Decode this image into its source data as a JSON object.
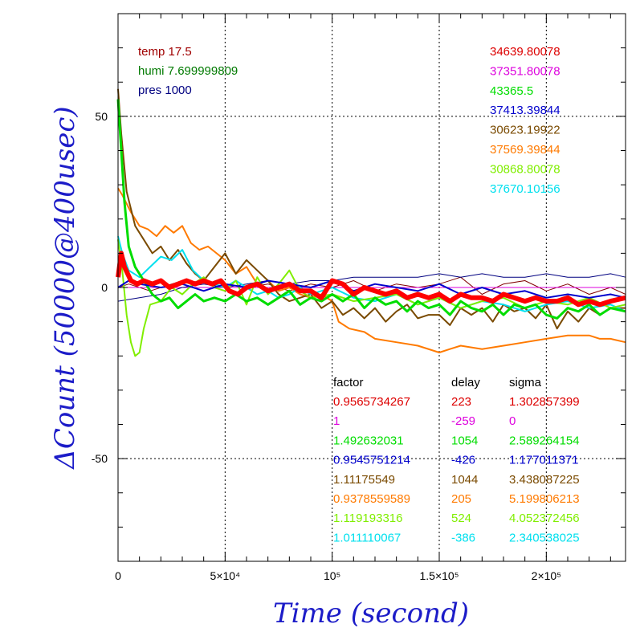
{
  "chart_data": {
    "type": "line",
    "title": "",
    "xlabel": "Time (second)",
    "ylabel": "ΔCount (50000@400usec)",
    "xlim": [
      0,
      237000
    ],
    "ylim": [
      -80,
      80
    ],
    "grid": true,
    "x_ticks": [
      {
        "value": 0,
        "label": "0"
      },
      {
        "value": 50000,
        "label": "5×10⁴"
      },
      {
        "value": 100000,
        "label": "10⁵"
      },
      {
        "value": 150000,
        "label": "1.5×10⁵"
      },
      {
        "value": 200000,
        "label": "2×10⁵"
      }
    ],
    "y_ticks": [
      {
        "value": 50,
        "label": "50"
      },
      {
        "value": 0,
        "label": "0"
      },
      {
        "value": -50,
        "label": "-50"
      }
    ],
    "env_text": [
      {
        "text": "temp 17.5",
        "color": "#a00000"
      },
      {
        "text": "humi 7.699999809",
        "color": "#007a00"
      },
      {
        "text": "pres 1000",
        "color": "#000080"
      }
    ],
    "sum_values": [
      {
        "text": "34639.80078",
        "color": "#dd0000"
      },
      {
        "text": "37351.80078",
        "color": "#dd00dd"
      },
      {
        "text": "43365.5",
        "color": "#00dd00"
      },
      {
        "text": "37413.39844",
        "color": "#0000cc"
      },
      {
        "text": "30623.19922",
        "color": "#7a4a00"
      },
      {
        "text": "37569.39844",
        "color": "#ff7a00"
      },
      {
        "text": "30868.80078",
        "color": "#80ee00"
      },
      {
        "text": "37670.10156",
        "color": "#00e0ee"
      }
    ],
    "table": {
      "headers": [
        "factor",
        "delay",
        "sigma"
      ],
      "rows": [
        {
          "factor": "0.9565734267",
          "delay": "223",
          "sigma": "1.302857399",
          "color": "#dd0000"
        },
        {
          "factor": "1",
          "delay": "-259",
          "sigma": "0",
          "color": "#dd00dd"
        },
        {
          "factor": "1.492632031",
          "delay": "1054",
          "sigma": "2.589264154",
          "color": "#00dd00"
        },
        {
          "factor": "0.9545751214",
          "delay": "-426",
          "sigma": "1.177011371",
          "color": "#0000cc"
        },
        {
          "factor": "1.11175549",
          "delay": "1044",
          "sigma": "3.438087225",
          "color": "#7a4a00"
        },
        {
          "factor": "0.9378559589",
          "delay": "205",
          "sigma": "5.199806213",
          "color": "#ff7a00"
        },
        {
          "factor": "1.119193316",
          "delay": "524",
          "sigma": "4.052372456",
          "color": "#80ee00"
        },
        {
          "factor": "1.011110067",
          "delay": "-386",
          "sigma": "2.340538025",
          "color": "#00e0ee"
        }
      ]
    },
    "series": [
      {
        "color": "#800000",
        "width": 1,
        "x": [
          0,
          5000,
          15000,
          30000,
          50000,
          60000,
          70000,
          80000,
          90000,
          100000,
          110000,
          120000,
          130000,
          140000,
          150000,
          160000,
          170000,
          180000,
          190000,
          200000,
          210000,
          220000,
          230000,
          237000
        ],
        "y": [
          0,
          1,
          -1,
          2,
          1,
          0,
          1,
          -1,
          1,
          0,
          2,
          -1,
          1,
          0,
          1,
          3,
          -2,
          1,
          2,
          -1,
          1,
          -2,
          0,
          -2
        ]
      },
      {
        "color": "#dd00dd",
        "width": 1,
        "x": [
          0,
          237000
        ],
        "y": [
          0,
          0
        ]
      },
      {
        "color": "#000080",
        "width": 1,
        "x": [
          0,
          10000,
          20000,
          30000,
          40000,
          50000,
          60000,
          70000,
          80000,
          90000,
          100000,
          110000,
          120000,
          130000,
          140000,
          150000,
          160000,
          170000,
          180000,
          190000,
          200000,
          210000,
          220000,
          230000,
          237000
        ],
        "y": [
          -4,
          -3,
          -2,
          0,
          1,
          0,
          1,
          2,
          1,
          2,
          2,
          3,
          3,
          3,
          3,
          4,
          3,
          4,
          3,
          3,
          4,
          3,
          3,
          4,
          3
        ]
      },
      {
        "color": "#ff7a00",
        "width": 2,
        "x": [
          0,
          2000,
          6000,
          10000,
          14000,
          18000,
          22000,
          26000,
          30000,
          34000,
          38000,
          42000,
          46000,
          50000,
          55000,
          60000,
          65000,
          70000,
          75000,
          80000,
          85000,
          90000,
          95000,
          100000,
          103000,
          108000,
          115000,
          120000,
          130000,
          140000,
          150000,
          155000,
          160000,
          170000,
          180000,
          190000,
          200000,
          210000,
          220000,
          225000,
          230000,
          237000
        ],
        "y": [
          29,
          27,
          22,
          18,
          17,
          15,
          18,
          16,
          18,
          13,
          11,
          12,
          10,
          8,
          4,
          6,
          1,
          2,
          -1,
          0,
          -2,
          -3,
          -2,
          -4,
          -10,
          -12,
          -13,
          -15,
          -16,
          -17,
          -19,
          -18,
          -17,
          -18,
          -17,
          -16,
          -15,
          -14,
          -14,
          -15,
          -15,
          -16
        ]
      },
      {
        "color": "#7a4a00",
        "width": 2,
        "x": [
          0,
          1500,
          4000,
          8000,
          12000,
          16000,
          20000,
          24000,
          28000,
          32000,
          36000,
          40000,
          45000,
          50000,
          55000,
          60000,
          65000,
          70000,
          75000,
          80000,
          85000,
          90000,
          95000,
          100000,
          105000,
          110000,
          115000,
          120000,
          125000,
          130000,
          135000,
          140000,
          145000,
          150000,
          155000,
          160000,
          165000,
          170000,
          175000,
          180000,
          185000,
          190000,
          195000,
          200000,
          205000,
          210000,
          215000,
          220000,
          225000,
          230000,
          237000
        ],
        "y": [
          58,
          45,
          28,
          18,
          14,
          10,
          12,
          8,
          11,
          7,
          4,
          2,
          6,
          10,
          4,
          8,
          5,
          2,
          -2,
          -4,
          -3,
          -2,
          -6,
          -4,
          -8,
          -6,
          -9,
          -6,
          -10,
          -7,
          -5,
          -9,
          -8,
          -8,
          -11,
          -6,
          -8,
          -6,
          -10,
          -5,
          -7,
          -6,
          -9,
          -5,
          -12,
          -7,
          -10,
          -6,
          -8,
          -6,
          -6
        ]
      },
      {
        "color": "#00e0ee",
        "width": 2,
        "x": [
          0,
          2000,
          5000,
          10000,
          15000,
          20000,
          25000,
          30000,
          35000,
          40000,
          45000,
          50000,
          55000,
          60000,
          65000,
          70000,
          75000,
          80000,
          85000,
          90000,
          95000,
          100000,
          110000,
          120000,
          130000,
          140000,
          150000,
          160000,
          170000,
          180000,
          190000,
          200000,
          210000,
          220000,
          230000,
          237000
        ],
        "y": [
          15,
          10,
          5,
          3,
          6,
          9,
          8,
          11,
          5,
          2,
          1,
          0,
          2,
          0,
          -2,
          -1,
          -3,
          -2,
          0,
          -2,
          -1,
          0,
          -3,
          -4,
          -2,
          -5,
          -3,
          -6,
          -4,
          -5,
          -7,
          -5,
          -4,
          -6,
          -5,
          -7
        ]
      },
      {
        "color": "#80ee00",
        "width": 2,
        "x": [
          0,
          2000,
          4000,
          6000,
          8000,
          10000,
          12000,
          15000,
          20000,
          25000,
          30000,
          35000,
          40000,
          45000,
          50000,
          55000,
          60000,
          65000,
          70000,
          75000,
          80000,
          85000,
          90000,
          100000,
          110000,
          120000,
          130000,
          140000,
          150000,
          160000,
          170000,
          180000,
          190000,
          200000,
          210000,
          220000,
          230000,
          237000
        ],
        "y": [
          14,
          5,
          -8,
          -16,
          -20,
          -19,
          -12,
          -5,
          -4,
          0,
          -2,
          1,
          3,
          0,
          -1,
          2,
          -5,
          3,
          -2,
          1,
          5,
          -1,
          -3,
          -2,
          -4,
          -3,
          -2,
          -5,
          -3,
          -6,
          -4,
          -3,
          -6,
          -4,
          -5,
          -3,
          -6,
          -5
        ]
      },
      {
        "color": "#00dd00",
        "width": 3,
        "x": [
          0,
          1500,
          3000,
          5000,
          8000,
          12000,
          16000,
          20000,
          24000,
          28000,
          32000,
          36000,
          40000,
          45000,
          50000,
          55000,
          60000,
          65000,
          70000,
          75000,
          80000,
          85000,
          90000,
          95000,
          100000,
          105000,
          110000,
          115000,
          120000,
          125000,
          130000,
          135000,
          140000,
          145000,
          150000,
          155000,
          160000,
          165000,
          170000,
          175000,
          180000,
          185000,
          190000,
          195000,
          200000,
          205000,
          210000,
          215000,
          220000,
          225000,
          230000,
          237000
        ],
        "y": [
          55,
          40,
          25,
          12,
          6,
          2,
          -2,
          -4,
          -3,
          -6,
          -4,
          -2,
          -4,
          -3,
          -4,
          -2,
          -4,
          -3,
          -5,
          -3,
          -1,
          -5,
          -3,
          -4,
          -2,
          -4,
          -2,
          -6,
          -3,
          -5,
          -4,
          -7,
          -4,
          -6,
          -5,
          -8,
          -4,
          -6,
          -7,
          -5,
          -8,
          -5,
          -6,
          -5,
          -8,
          -9,
          -6,
          -7,
          -5,
          -8,
          -6,
          -7
        ]
      },
      {
        "color": "#0000cc",
        "width": 2,
        "x": [
          0,
          5000,
          10000,
          20000,
          30000,
          40000,
          50000,
          60000,
          70000,
          80000,
          90000,
          100000,
          110000,
          120000,
          130000,
          140000,
          150000,
          160000,
          170000,
          180000,
          190000,
          200000,
          210000,
          220000,
          230000,
          237000
        ],
        "y": [
          0,
          2,
          1,
          0,
          1,
          -1,
          1,
          0,
          2,
          1,
          0,
          2,
          -1,
          1,
          0,
          -1,
          1,
          -2,
          0,
          -2,
          -1,
          -3,
          -2,
          -3,
          -2,
          -3
        ]
      },
      {
        "color": "#ff0000",
        "width": 6,
        "x": [
          0,
          1500,
          3000,
          6000,
          9000,
          12000,
          16000,
          20000,
          24000,
          28000,
          32000,
          36000,
          40000,
          44000,
          48000,
          52000,
          56000,
          60000,
          65000,
          70000,
          75000,
          80000,
          85000,
          90000,
          95000,
          100000,
          105000,
          110000,
          115000,
          120000,
          125000,
          130000,
          135000,
          140000,
          145000,
          150000,
          155000,
          160000,
          165000,
          170000,
          175000,
          180000,
          185000,
          190000,
          195000,
          200000,
          205000,
          210000,
          215000,
          220000,
          225000,
          230000,
          237000
        ],
        "y": [
          3,
          10,
          6,
          2,
          1,
          2,
          1,
          2,
          0,
          1,
          2,
          1,
          2,
          1,
          2,
          -1,
          -2,
          0,
          1,
          -1,
          0,
          1,
          -1,
          -1,
          -3,
          2,
          1,
          -2,
          0,
          -1,
          -2,
          -1,
          -3,
          -2,
          -3,
          -2,
          -4,
          -2,
          -3,
          -3,
          -4,
          -2,
          -3,
          -4,
          -3,
          -4,
          -4,
          -3,
          -5,
          -4,
          -5,
          -4,
          -3
        ]
      }
    ]
  }
}
